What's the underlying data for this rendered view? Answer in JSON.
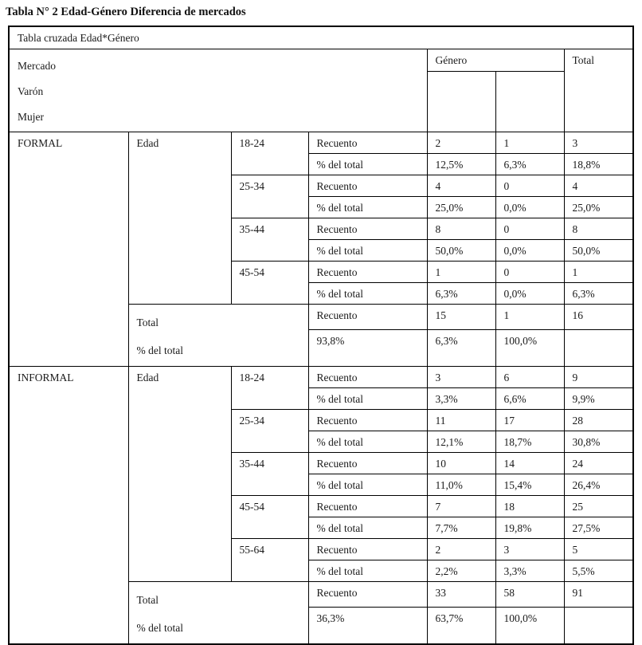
{
  "page": {
    "title": "Tabla N° 2 Edad-Género Diferencia de mercados"
  },
  "table": {
    "caption": "Tabla cruzada Edad*Género",
    "header": {
      "left_lines": [
        "Mercado",
        "Varón",
        "Mujer"
      ],
      "genero": "Género",
      "total": "Total"
    },
    "labels": {
      "edad": "Edad",
      "recuento": "Recuento",
      "pct": "% del total",
      "total": "Total"
    },
    "sections": [
      {
        "market": "FORMAL",
        "groups": [
          {
            "age": "18-24",
            "count": [
              "2",
              "1",
              "3"
            ],
            "pct": [
              "12,5%",
              "6,3%",
              "18,8%"
            ]
          },
          {
            "age": "25-34",
            "count": [
              "4",
              "0",
              "4"
            ],
            "pct": [
              "25,0%",
              "0,0%",
              "25,0%"
            ]
          },
          {
            "age": "35-44",
            "count": [
              "8",
              "0",
              "8"
            ],
            "pct": [
              "50,0%",
              "0,0%",
              "50,0%"
            ]
          },
          {
            "age": "45-54",
            "count": [
              "1",
              "0",
              "1"
            ],
            "pct": [
              "6,3%",
              "0,0%",
              "6,3%"
            ]
          }
        ],
        "total": {
          "count": [
            "15",
            "1",
            "16"
          ],
          "pct": [
            "93,8%",
            "6,3%",
            "100,0%"
          ]
        }
      },
      {
        "market": "INFORMAL",
        "groups": [
          {
            "age": "18-24",
            "count": [
              "3",
              "6",
              "9"
            ],
            "pct": [
              "3,3%",
              "6,6%",
              "9,9%"
            ]
          },
          {
            "age": "25-34",
            "count": [
              "11",
              "17",
              "28"
            ],
            "pct": [
              "12,1%",
              "18,7%",
              "30,8%"
            ]
          },
          {
            "age": "35-44",
            "count": [
              "10",
              "14",
              "24"
            ],
            "pct": [
              "11,0%",
              "15,4%",
              "26,4%"
            ]
          },
          {
            "age": "45-54",
            "count": [
              "7",
              "18",
              "25"
            ],
            "pct": [
              "7,7%",
              "19,8%",
              "27,5%"
            ]
          },
          {
            "age": "55-64",
            "count": [
              "2",
              "3",
              "5"
            ],
            "pct": [
              "2,2%",
              "3,3%",
              "5,5%"
            ]
          }
        ],
        "total": {
          "count": [
            "33",
            "58",
            "91"
          ],
          "pct": [
            "36,3%",
            "63,7%",
            "100,0%"
          ]
        }
      }
    ]
  }
}
